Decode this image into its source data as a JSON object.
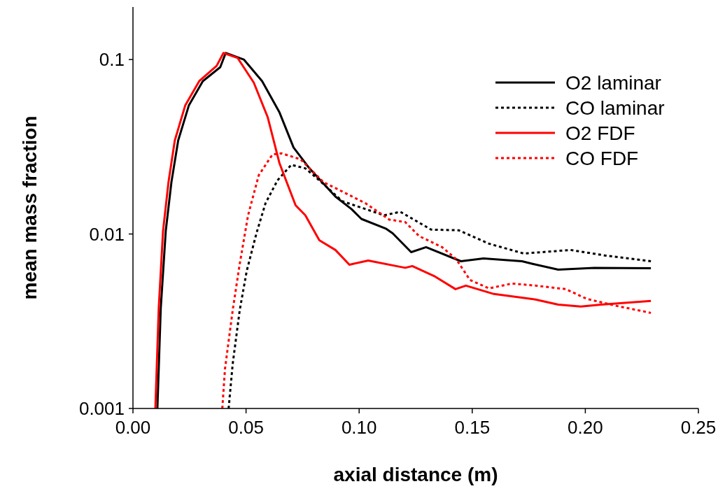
{
  "chart_data": {
    "type": "line",
    "xlabel": "axial distance (m)",
    "ylabel": "mean mass fraction",
    "log": "y",
    "xlim": [
      0,
      0.25
    ],
    "ylim": [
      0.001,
      0.2
    ],
    "xticks": [
      {
        "value": 0,
        "label": "0.00"
      },
      {
        "value": 0.05,
        "label": "0.05"
      },
      {
        "value": 0.1,
        "label": "0.10"
      },
      {
        "value": 0.15,
        "label": "0.15"
      },
      {
        "value": 0.2,
        "label": "0.20"
      },
      {
        "value": 0.25,
        "label": "0.25"
      }
    ],
    "yticks": [
      0.001,
      0.01,
      0.1
    ],
    "grid": false,
    "legend": "top right",
    "marker": "none",
    "series": [
      {
        "name": "O2 laminar",
        "color": "#000000",
        "line_style": "solid",
        "x": [
          0.0108,
          0.0123,
          0.0145,
          0.017,
          0.02,
          0.0247,
          0.0309,
          0.0386,
          0.041,
          0.049,
          0.0571,
          0.0648,
          0.071,
          0.078,
          0.0895,
          0.0966,
          0.101,
          0.112,
          0.1148,
          0.123,
          0.1296,
          0.145,
          0.155,
          0.172,
          0.177,
          0.188,
          0.204,
          0.229
        ],
        "values": [
          0.001,
          0.00377,
          0.0104,
          0.0198,
          0.0344,
          0.0545,
          0.0752,
          0.0904,
          0.109,
          0.1,
          0.0752,
          0.0497,
          0.0313,
          0.0238,
          0.0164,
          0.0139,
          0.0122,
          0.0107,
          0.0101,
          0.00787,
          0.0084,
          0.00698,
          0.00724,
          0.00698,
          0.00673,
          0.00625,
          0.0064,
          0.00637
        ]
      },
      {
        "name": "CO laminar",
        "color": "#000000",
        "line_style": "dotted",
        "x": [
          0.0423,
          0.0441,
          0.0472,
          0.0503,
          0.0546,
          0.0586,
          0.0639,
          0.07,
          0.0762,
          0.0824,
          0.0926,
          0.1028,
          0.111,
          0.1182,
          0.1318,
          0.1441,
          0.1574,
          0.1728,
          0.1935,
          0.209,
          0.229
        ],
        "values": [
          0.001,
          0.0018,
          0.00366,
          0.00614,
          0.0101,
          0.015,
          0.0203,
          0.0249,
          0.0238,
          0.0203,
          0.0154,
          0.0139,
          0.0128,
          0.0134,
          0.0106,
          0.0105,
          0.0088,
          0.00773,
          0.0081,
          0.00752,
          0.00698
        ]
      },
      {
        "name": "O2 FDF",
        "color": "#ff0000",
        "line_style": "solid",
        "x": [
          0.0099,
          0.0114,
          0.0133,
          0.0157,
          0.0185,
          0.0231,
          0.0293,
          0.037,
          0.04,
          0.0463,
          0.0534,
          0.0596,
          0.0648,
          0.0719,
          0.0762,
          0.0824,
          0.0895,
          0.0957,
          0.104,
          0.1164,
          0.1204,
          0.1235,
          0.1336,
          0.1426,
          0.1472,
          0.1596,
          0.178,
          0.188,
          0.198,
          0.207,
          0.229
        ],
        "values": [
          0.001,
          0.00377,
          0.0104,
          0.0198,
          0.0344,
          0.0545,
          0.0752,
          0.092,
          0.109,
          0.102,
          0.0738,
          0.0466,
          0.0254,
          0.0146,
          0.0128,
          0.0092,
          0.0081,
          0.00667,
          0.00705,
          0.00655,
          0.0064,
          0.00655,
          0.0057,
          0.00483,
          0.00506,
          0.00453,
          0.00421,
          0.00394,
          0.00384,
          0.00394,
          0.00413
        ]
      },
      {
        "name": "CO FDF",
        "color": "#ff0000",
        "line_style": "dotted",
        "x": [
          0.0395,
          0.0407,
          0.0441,
          0.0472,
          0.0509,
          0.0556,
          0.0617,
          0.0657,
          0.0741,
          0.0843,
          0.0926,
          0.1028,
          0.1059,
          0.1133,
          0.1204,
          0.1265,
          0.1367,
          0.1429,
          0.149,
          0.1574,
          0.1676,
          0.178,
          0.1914,
          0.2006,
          0.2139,
          0.229
        ],
        "values": [
          0.001,
          0.00169,
          0.00366,
          0.00673,
          0.0128,
          0.0217,
          0.0286,
          0.029,
          0.0268,
          0.0198,
          0.0175,
          0.015,
          0.0141,
          0.0121,
          0.0117,
          0.00973,
          0.0084,
          0.00718,
          0.00545,
          0.00488,
          0.0052,
          0.00506,
          0.00483,
          0.00425,
          0.00387,
          0.00353
        ]
      }
    ]
  }
}
